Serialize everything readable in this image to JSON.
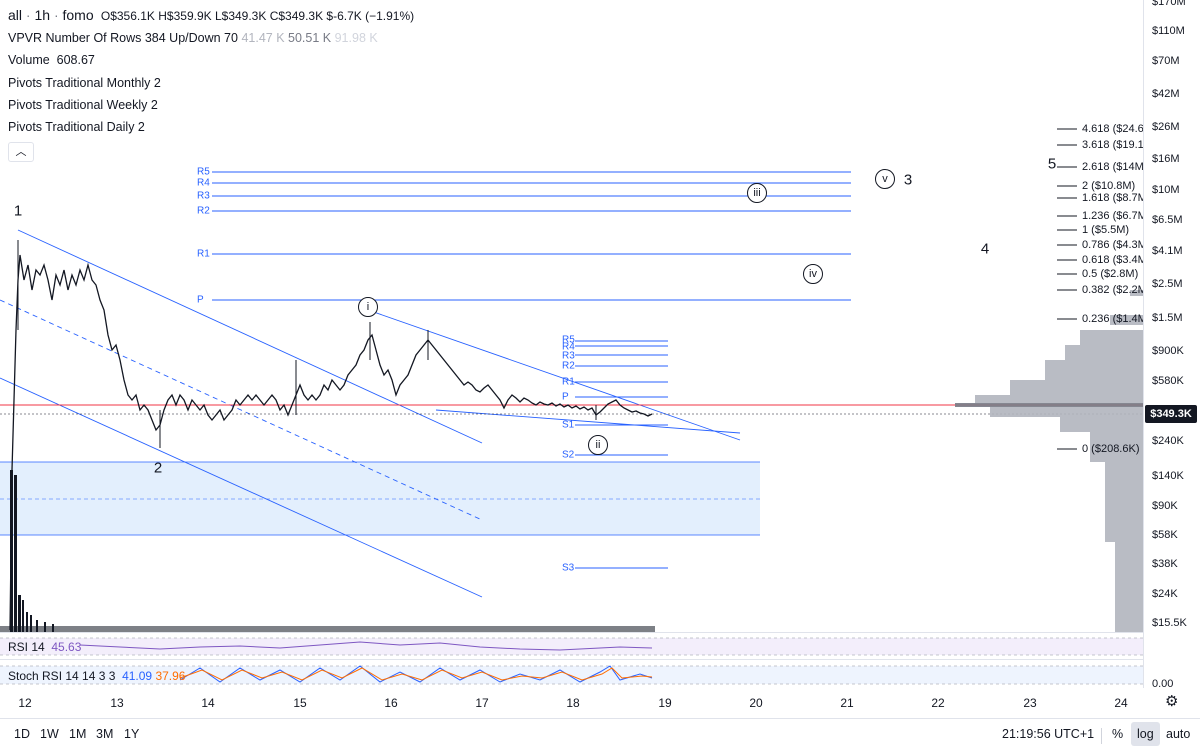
{
  "header": {
    "symbol": "all",
    "interval": "1h",
    "exchange": "fomo",
    "open": "O$356.1K",
    "high": "H$359.9K",
    "low": "L$349.3K",
    "close": "C$349.3K",
    "change": "$-6.7K (−1.91%)"
  },
  "indicators": {
    "vpvr_label": "VPVR Number Of Rows 384 Up/Down 70",
    "vpvr_up": "41.47 K",
    "vpvr_down": "50.51 K",
    "vpvr_total": "91.98 K",
    "volume_label": "Volume",
    "volume_value": "608.67",
    "pivots_monthly": "Pivots Traditional Monthly 2",
    "pivots_weekly": "Pivots Traditional Weekly 2",
    "pivots_daily": "Pivots Traditional Daily 2",
    "collapse_icon": "chevron-up-icon"
  },
  "price_axis": {
    "labels": [
      "$170M",
      "$110M",
      "$70M",
      "$42M",
      "$26M",
      "$16M",
      "$10M",
      "$6.5M",
      "$4.1M",
      "$2.5M",
      "$1.5M",
      "$900K",
      "$580K",
      "$240K",
      "$140K",
      "$90K",
      "$58K",
      "$38K",
      "$24K",
      "$15.5K"
    ],
    "current_price": "$349.3K"
  },
  "fib_levels": [
    "4.618 ($24.6",
    "3.618 ($19.1",
    "2.618 ($14M",
    "2 ($10.8M)",
    "1.618 ($8.7M",
    "1.236 ($6.7M",
    "1 ($5.5M)",
    "0.786 ($4.3M",
    "0.618 ($3.4M",
    "0.5 ($2.8M)",
    "0.382 ($2.2M",
    "0.236 ($1.4M",
    "0 ($208.6K)"
  ],
  "pivots_weekly_labels": [
    "R5",
    "R4",
    "R3",
    "R2",
    "R1",
    "P"
  ],
  "pivots_daily_labels": [
    "R5",
    "R4",
    "R3",
    "R2",
    "R1",
    "P",
    "S1",
    "S2",
    "S3"
  ],
  "waves": {
    "w1": "1",
    "w2": "2",
    "w3": "3",
    "w4": "4",
    "w5": "5",
    "wi": "i",
    "wii": "ii",
    "wiii": "iii",
    "wiv": "iv",
    "wv": "v"
  },
  "rsi": {
    "label": "RSI 14",
    "value": "45.63",
    "color": "#7e57c2"
  },
  "stoch": {
    "label": "Stoch RSI 14 14 3 3",
    "k": "41.09",
    "d": "37.96",
    "k_color": "#2962ff",
    "d_color": "#ff6d00"
  },
  "stoch_axis_label": "0.00",
  "time_axis": [
    "12",
    "13",
    "14",
    "15",
    "16",
    "17",
    "18",
    "19",
    "20",
    "21",
    "22",
    "23",
    "24"
  ],
  "settings_icon": "gear-icon",
  "bottom": {
    "ranges": [
      "1D",
      "1W",
      "1M",
      "3M",
      "1Y"
    ],
    "clock": "21:19:56 UTC+1",
    "percent": "%",
    "log": "log",
    "auto": "auto"
  },
  "colors": {
    "accent": "#2962ff",
    "current_price_line": "#f23645",
    "candle": "#131722",
    "zone": "#e3effd"
  }
}
